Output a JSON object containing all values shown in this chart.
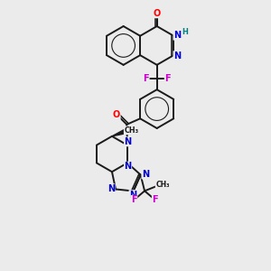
{
  "background_color": "#ebebeb",
  "figsize": [
    3.0,
    3.0
  ],
  "dpi": 100,
  "bond_color": "#1a1a1a",
  "bond_width": 1.4,
  "atom_colors": {
    "O": "#ff0000",
    "N": "#0000cc",
    "F": "#cc00cc",
    "H": "#008080",
    "C": "#1a1a1a"
  },
  "font_size_atom": 7.0,
  "font_size_small": 5.5
}
